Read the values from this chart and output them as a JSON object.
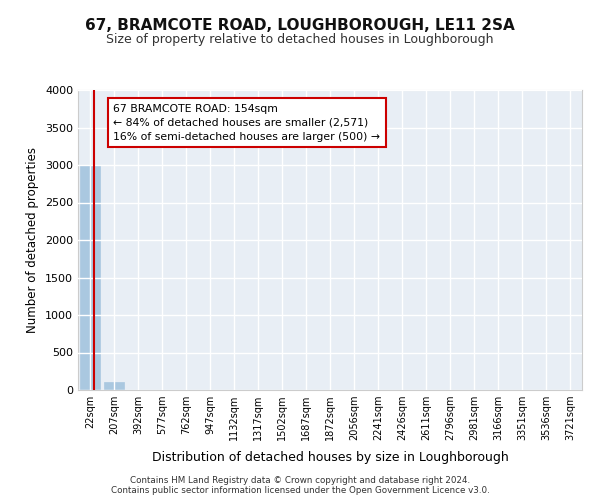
{
  "title": "67, BRAMCOTE ROAD, LOUGHBOROUGH, LE11 2SA",
  "subtitle": "Size of property relative to detached houses in Loughborough",
  "xlabel": "Distribution of detached houses by size in Loughborough",
  "ylabel": "Number of detached properties",
  "bin_labels": [
    "22sqm",
    "207sqm",
    "392sqm",
    "577sqm",
    "762sqm",
    "947sqm",
    "1132sqm",
    "1317sqm",
    "1502sqm",
    "1687sqm",
    "1872sqm",
    "2056sqm",
    "2241sqm",
    "2426sqm",
    "2611sqm",
    "2796sqm",
    "2981sqm",
    "3166sqm",
    "3351sqm",
    "3536sqm",
    "3721sqm"
  ],
  "bar_heights": [
    3000,
    110,
    0,
    0,
    0,
    0,
    0,
    0,
    0,
    0,
    0,
    0,
    0,
    0,
    0,
    0,
    0,
    0,
    0,
    0,
    0
  ],
  "bar_color": "#aac8e0",
  "bar_edge_color": "#aac8e0",
  "bg_color": "#e8eef5",
  "grid_color": "#ffffff",
  "ylim": [
    0,
    4000
  ],
  "yticks": [
    0,
    500,
    1000,
    1500,
    2000,
    2500,
    3000,
    3500,
    4000
  ],
  "property_line_color": "#cc0000",
  "annotation_text": "67 BRAMCOTE ROAD: 154sqm\n← 84% of detached houses are smaller (2,571)\n16% of semi-detached houses are larger (500) →",
  "annotation_box_color": "#ffffff",
  "annotation_border_color": "#cc0000",
  "footer_line1": "Contains HM Land Registry data © Crown copyright and database right 2024.",
  "footer_line2": "Contains public sector information licensed under the Open Government Licence v3.0."
}
